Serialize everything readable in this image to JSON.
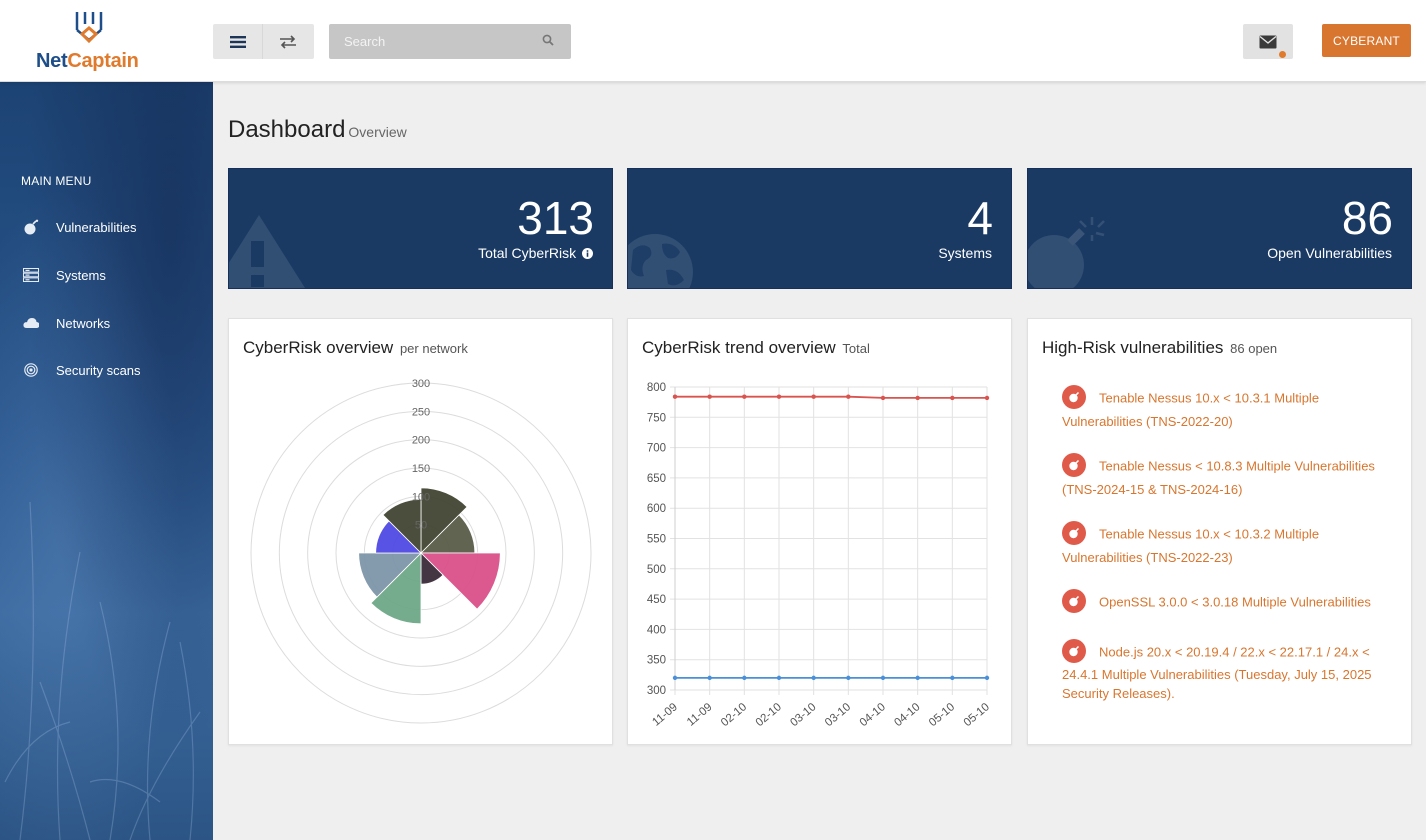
{
  "header": {
    "logo_part1": "Net",
    "logo_part2": "Captain",
    "search_placeholder": "Search",
    "user_button": "CYBERANT"
  },
  "sidebar": {
    "heading": "MAIN MENU",
    "items": [
      {
        "label": "Vulnerabilities",
        "icon": "bomb-icon"
      },
      {
        "label": "Systems",
        "icon": "server-icon"
      },
      {
        "label": "Networks",
        "icon": "cloud-icon"
      },
      {
        "label": "Security scans",
        "icon": "target-icon"
      }
    ]
  },
  "page": {
    "title": "Dashboard",
    "subtitle": "Overview"
  },
  "stats": [
    {
      "value": "313",
      "label": "Total CyberRisk",
      "icon": "warning-icon"
    },
    {
      "value": "4",
      "label": "Systems",
      "icon": "globe-icon"
    },
    {
      "value": "86",
      "label": "Open Vulnerabilities",
      "icon": "bomb-icon"
    }
  ],
  "panels": {
    "polar": {
      "title": "CyberRisk overview",
      "subtitle": "per network"
    },
    "trend": {
      "title": "CyberRisk trend overview",
      "subtitle": "Total"
    },
    "vulns": {
      "title": "High-Risk vulnerabilities",
      "subtitle": "86 open"
    }
  },
  "vulnerabilities": [
    "Tenable Nessus 10.x < 10.3.1 Multiple Vulnerabilities (TNS-2022-20)",
    "Tenable Nessus < 10.8.3 Multiple Vulnerabilities (TNS-2024-15 & TNS-2024-16)",
    "Tenable Nessus 10.x < 10.3.2 Multiple Vulnerabilities (TNS-2022-23)",
    "OpenSSL 3.0.0 < 3.0.18 Multiple Vulnerabilities",
    "Node.js 20.x < 20.19.4 / 22.x < 22.17.1 / 24.x < 24.4.1 Multiple Vulnerabilities (Tuesday, July 15, 2025 Security Releases)."
  ],
  "colors": {
    "accent": "#d8762f",
    "navy": "#1a3a64",
    "vuln_icon": "#e05a4a"
  },
  "chart_data": [
    {
      "type": "polar-area",
      "r_ticks": [
        50,
        100,
        150,
        200,
        250,
        300
      ],
      "r_max": 300,
      "values": [
        115,
        95,
        140,
        55,
        125,
        110,
        80,
        95
      ],
      "colors": [
        "#3d3f2c",
        "#535741",
        "#d94b86",
        "#352534",
        "#6aa584",
        "#7991a6",
        "#4b44e3",
        "#3d3f2c"
      ]
    },
    {
      "type": "line",
      "categories": [
        "11-09",
        "11-09",
        "02-10",
        "02-10",
        "03-10",
        "03-10",
        "04-10",
        "04-10",
        "05-10",
        "05-10"
      ],
      "ylim": [
        300,
        800
      ],
      "yticks": [
        300,
        350,
        400,
        450,
        500,
        550,
        600,
        650,
        700,
        750,
        800
      ],
      "series": [
        {
          "values": [
            784,
            784,
            784,
            784,
            784,
            784,
            782,
            782,
            782,
            782
          ],
          "color": "#d9534f"
        },
        {
          "values": [
            320,
            320,
            320,
            320,
            320,
            320,
            320,
            320,
            320,
            320
          ],
          "color": "#4a90d9"
        }
      ]
    }
  ]
}
